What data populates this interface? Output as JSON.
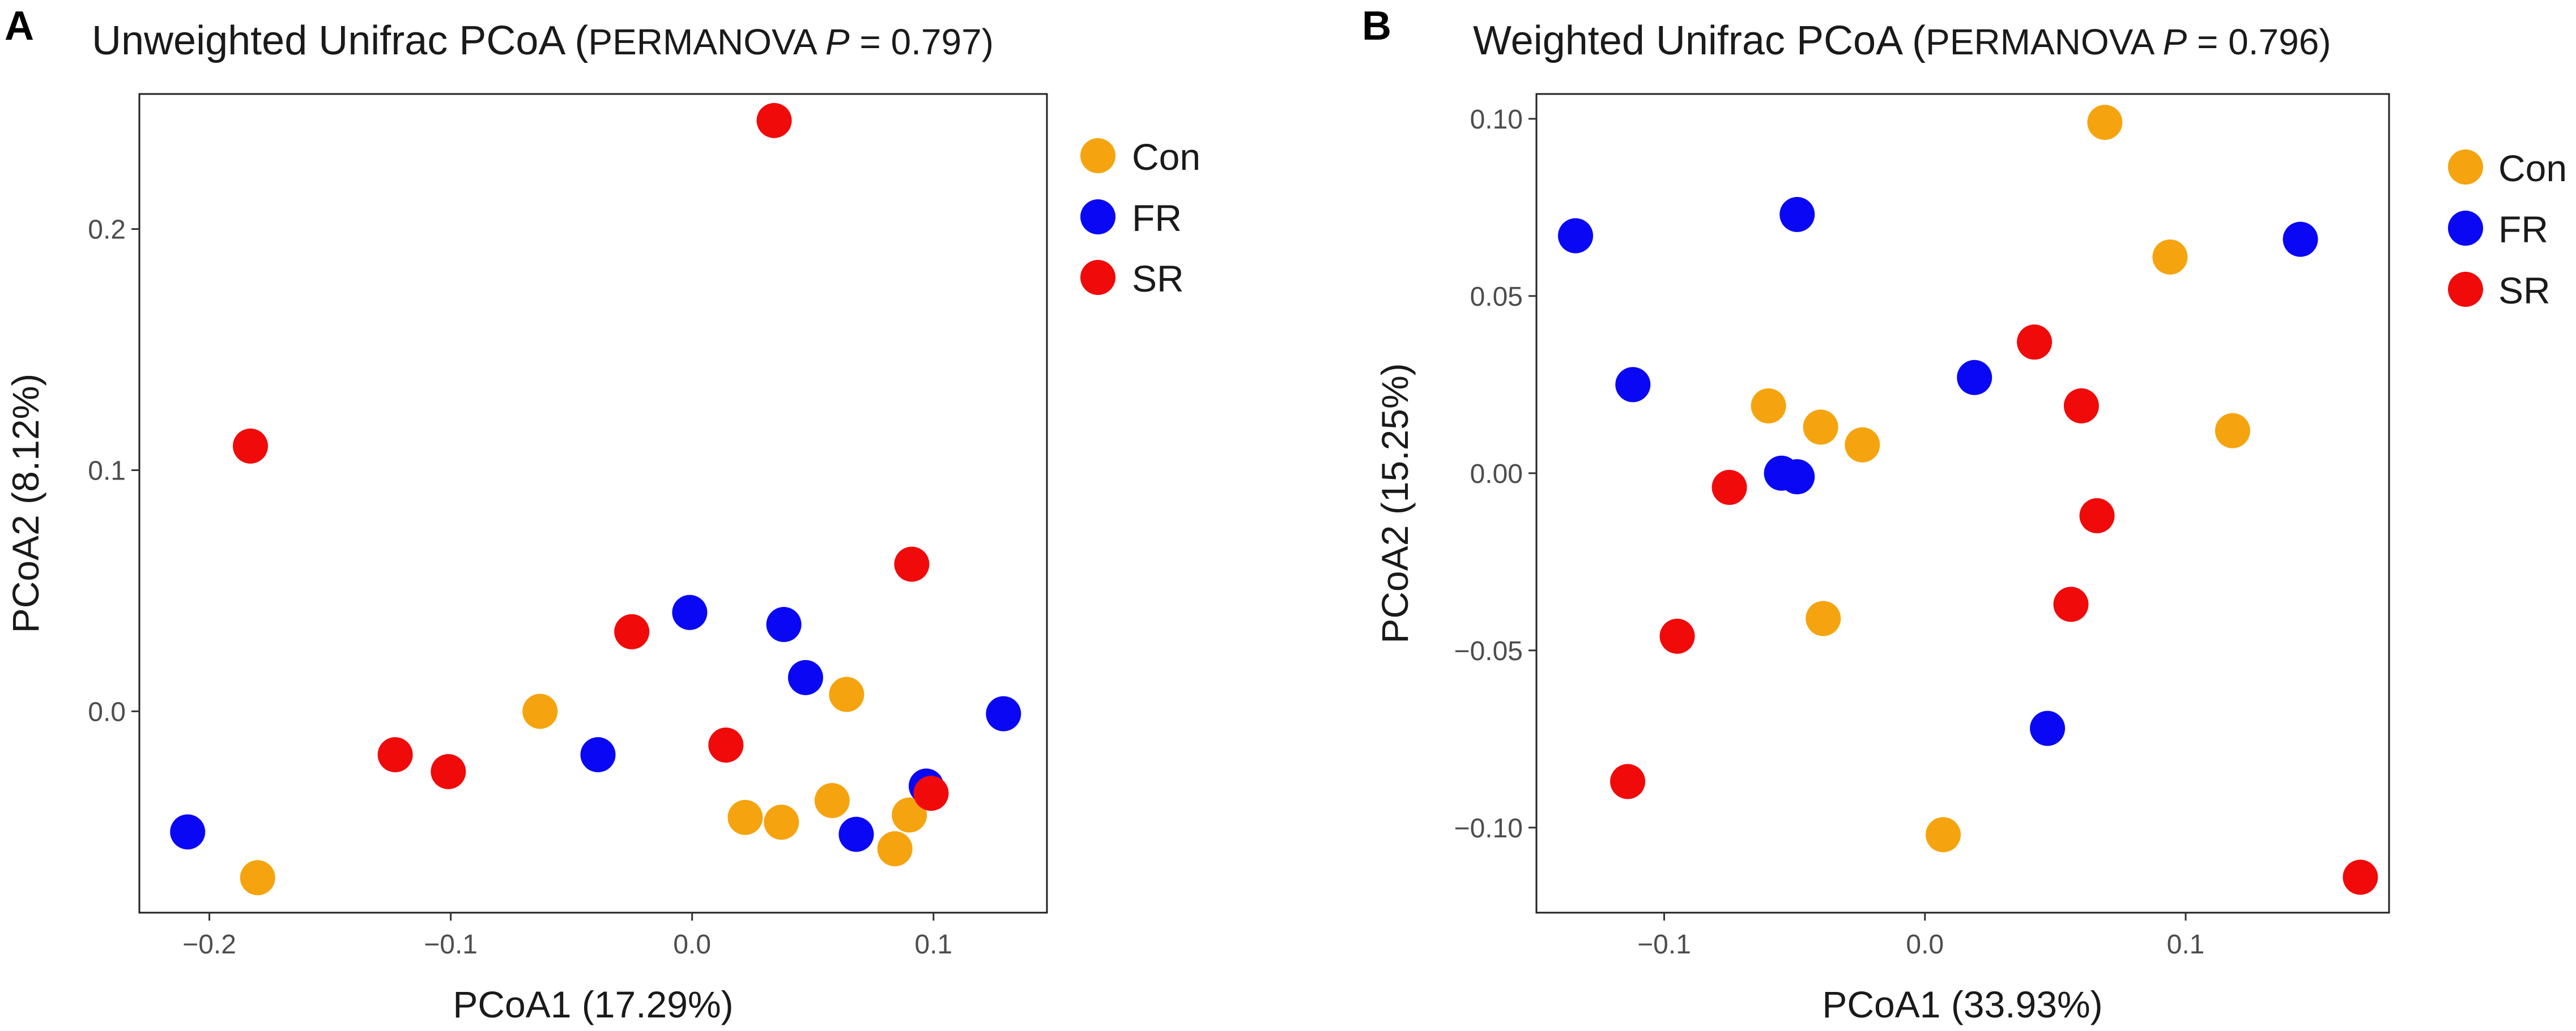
{
  "colors": {
    "Con": "#F5A40F",
    "FR": "#0A07F5",
    "SR": "#F00A0A"
  },
  "chart_data": [
    {
      "type": "scatter",
      "panel_label": "A",
      "title_main": "Unweighted Unifrac PCoA (",
      "title_stat": "PERMANOVA ",
      "title_p": "P",
      "title_tail": " = 0.797)",
      "xlabel": "PCoA1 (17.29%)",
      "ylabel": "PCoA2 (8.12%)",
      "xlim": [
        -0.229,
        0.147
      ],
      "ylim": [
        -0.0835,
        0.256
      ],
      "xticks": [
        -0.2,
        -0.1,
        0.0,
        0.1
      ],
      "xtick_labels": [
        "−0.2",
        "−0.1",
        "0.0",
        "0.1"
      ],
      "yticks": [
        0.0,
        0.1,
        0.2
      ],
      "ytick_labels": [
        "0.0",
        "0.1",
        "0.2"
      ],
      "legend": [
        "Con",
        "FR",
        "SR"
      ],
      "series": [
        {
          "name": "Con",
          "points": [
            [
              -0.18,
              -0.069
            ],
            [
              -0.063,
              0.0
            ],
            [
              0.022,
              -0.044
            ],
            [
              0.037,
              -0.046
            ],
            [
              0.058,
              -0.037
            ],
            [
              0.064,
              0.007
            ],
            [
              0.084,
              -0.057
            ],
            [
              0.09,
              -0.043
            ]
          ]
        },
        {
          "name": "FR",
          "points": [
            [
              -0.209,
              -0.05
            ],
            [
              -0.039,
              -0.018
            ],
            [
              -0.001,
              0.041
            ],
            [
              0.038,
              0.036
            ],
            [
              0.047,
              0.014
            ],
            [
              0.068,
              -0.051
            ],
            [
              0.097,
              -0.031
            ],
            [
              0.129,
              -0.001
            ]
          ]
        },
        {
          "name": "SR",
          "points": [
            [
              0.034,
              0.245
            ],
            [
              -0.183,
              0.11
            ],
            [
              0.091,
              0.061
            ],
            [
              -0.025,
              0.033
            ],
            [
              -0.123,
              -0.018
            ],
            [
              -0.101,
              -0.025
            ],
            [
              0.014,
              -0.014
            ],
            [
              0.099,
              -0.034
            ]
          ]
        }
      ]
    },
    {
      "type": "scatter",
      "panel_label": "B",
      "title_main": "Weighted Unifrac PCoA (",
      "title_stat": "PERMANOVA ",
      "title_p": "P",
      "title_tail": " = 0.796)",
      "xlabel": "PCoA1 (33.93%)",
      "ylabel": "PCoA2 (15.25%)",
      "xlim": [
        -0.149,
        0.178
      ],
      "ylim": [
        -0.124,
        0.107
      ],
      "xticks": [
        -0.1,
        0.0,
        0.1
      ],
      "xtick_labels": [
        "−0.1",
        "0.0",
        "0.1"
      ],
      "yticks": [
        -0.1,
        -0.05,
        0.0,
        0.05,
        0.1
      ],
      "ytick_labels": [
        "−0.10",
        "−0.05",
        "0.00",
        "0.05",
        "0.10"
      ],
      "legend": [
        "Con",
        "FR",
        "SR"
      ],
      "series": [
        {
          "name": "Con",
          "points": [
            [
              0.069,
              0.099
            ],
            [
              0.094,
              0.061
            ],
            [
              -0.06,
              0.019
            ],
            [
              -0.04,
              0.013
            ],
            [
              -0.024,
              0.008
            ],
            [
              0.118,
              0.012
            ],
            [
              -0.039,
              -0.041
            ],
            [
              0.007,
              -0.102
            ]
          ]
        },
        {
          "name": "FR",
          "points": [
            [
              -0.134,
              0.067
            ],
            [
              -0.049,
              0.073
            ],
            [
              0.144,
              0.066
            ],
            [
              -0.112,
              0.025
            ],
            [
              0.019,
              0.027
            ],
            [
              -0.055,
              0.0
            ],
            [
              -0.049,
              -0.001
            ],
            [
              0.047,
              -0.072
            ]
          ]
        },
        {
          "name": "SR",
          "points": [
            [
              0.042,
              0.037
            ],
            [
              0.06,
              0.019
            ],
            [
              -0.075,
              -0.004
            ],
            [
              0.066,
              -0.012
            ],
            [
              -0.095,
              -0.046
            ],
            [
              0.056,
              -0.037
            ],
            [
              -0.114,
              -0.087
            ],
            [
              0.167,
              -0.114
            ]
          ]
        }
      ]
    }
  ]
}
